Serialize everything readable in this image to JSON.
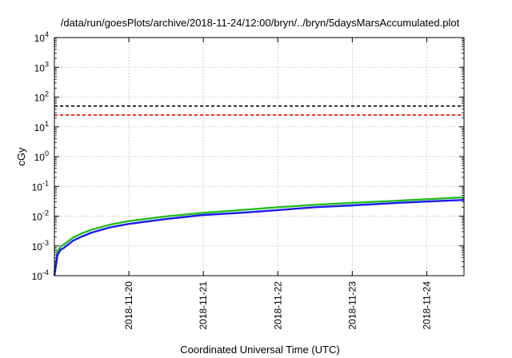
{
  "chart_data": {
    "type": "line",
    "title": "/data/run/goesPlots/archive/2018-11-24/12:00/bryn/../bryn/5daysMarsAccumulated.plot",
    "xlabel": "Coordinated Universal Time (UTC)",
    "ylabel": "cGy",
    "yscale": "log",
    "ylim": [
      0.0001,
      10000
    ],
    "xlim": [
      "2018-11-19 00:00",
      "2018-11-24 12:00"
    ],
    "grid": true,
    "xticks": [
      "2018-11-20",
      "2018-11-21",
      "2018-11-22",
      "2018-11-23",
      "2018-11-24"
    ],
    "yticks": [
      {
        "base": "10",
        "exp": "-4"
      },
      {
        "base": "10",
        "exp": "-3"
      },
      {
        "base": "10",
        "exp": "-2"
      },
      {
        "base": "10",
        "exp": "-1"
      },
      {
        "base": "10",
        "exp": "0"
      },
      {
        "base": "10",
        "exp": "1"
      },
      {
        "base": "10",
        "exp": "2"
      },
      {
        "base": "10",
        "exp": "3"
      },
      {
        "base": "10",
        "exp": "4"
      }
    ],
    "reference_lines": [
      {
        "value": 50,
        "color": "#000000",
        "style": "dashed"
      },
      {
        "value": 25,
        "color": "#ff0000",
        "style": "dashed"
      }
    ],
    "series": [
      {
        "color": "#22bb22",
        "x": [
          "2018-11-19 00:00",
          "2018-11-19 01:00",
          "2018-11-19 02:00",
          "2018-11-19 03:00",
          "2018-11-19 06:00",
          "2018-11-19 09:00",
          "2018-11-19 12:00",
          "2018-11-19 18:00",
          "2018-11-20 00:00",
          "2018-11-20 12:00",
          "2018-11-21 00:00",
          "2018-11-21 12:00",
          "2018-11-22 00:00",
          "2018-11-22 12:00",
          "2018-11-23 00:00",
          "2018-11-23 12:00",
          "2018-11-24 00:00",
          "2018-11-24 12:00"
        ],
        "y": [
          0.00013,
          0.00065,
          0.00095,
          0.0011,
          0.0019,
          0.0027,
          0.0035,
          0.0052,
          0.0068,
          0.0098,
          0.013,
          0.016,
          0.02,
          0.024,
          0.028,
          0.032,
          0.037,
          0.043
        ]
      },
      {
        "color": "#1a1aee",
        "x": [
          "2018-11-19 00:00",
          "2018-11-19 01:00",
          "2018-11-19 02:00",
          "2018-11-19 03:00",
          "2018-11-19 06:00",
          "2018-11-19 09:00",
          "2018-11-19 12:00",
          "2018-11-19 18:00",
          "2018-11-20 00:00",
          "2018-11-20 12:00",
          "2018-11-21 00:00",
          "2018-11-21 12:00",
          "2018-11-22 00:00",
          "2018-11-22 12:00",
          "2018-11-23 00:00",
          "2018-11-23 12:00",
          "2018-11-24 00:00",
          "2018-11-24 12:00"
        ],
        "y": [
          0.0001,
          0.0005,
          0.00075,
          0.00085,
          0.0015,
          0.0021,
          0.0028,
          0.0042,
          0.0055,
          0.008,
          0.011,
          0.013,
          0.016,
          0.02,
          0.023,
          0.027,
          0.031,
          0.035
        ]
      }
    ]
  }
}
